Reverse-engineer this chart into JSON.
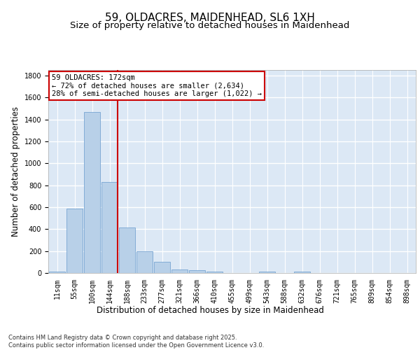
{
  "title1": "59, OLDACRES, MAIDENHEAD, SL6 1XH",
  "title2": "Size of property relative to detached houses in Maidenhead",
  "xlabel": "Distribution of detached houses by size in Maidenhead",
  "ylabel": "Number of detached properties",
  "categories": [
    "11sqm",
    "55sqm",
    "100sqm",
    "144sqm",
    "188sqm",
    "233sqm",
    "277sqm",
    "321sqm",
    "366sqm",
    "410sqm",
    "455sqm",
    "499sqm",
    "543sqm",
    "588sqm",
    "632sqm",
    "676sqm",
    "721sqm",
    "765sqm",
    "809sqm",
    "854sqm",
    "898sqm"
  ],
  "values": [
    15,
    590,
    1470,
    830,
    415,
    200,
    105,
    30,
    25,
    15,
    0,
    0,
    15,
    0,
    15,
    0,
    0,
    0,
    0,
    0,
    0
  ],
  "bar_color": "#b8d0e8",
  "bar_edge_color": "#6699cc",
  "vline_color": "#cc0000",
  "annotation_line1": "59 OLDACRES: 172sqm",
  "annotation_line2": "← 72% of detached houses are smaller (2,634)",
  "annotation_line3": "28% of semi-detached houses are larger (1,022) →",
  "annotation_box_color": "#ffffff",
  "annotation_box_edge": "#cc0000",
  "ylim": [
    0,
    1850
  ],
  "yticks": [
    0,
    200,
    400,
    600,
    800,
    1000,
    1200,
    1400,
    1600,
    1800
  ],
  "background_color": "#dce8f5",
  "grid_color": "#ffffff",
  "footer": "Contains HM Land Registry data © Crown copyright and database right 2025.\nContains public sector information licensed under the Open Government Licence v3.0.",
  "title1_fontsize": 11,
  "title2_fontsize": 9.5,
  "axis_label_fontsize": 8.5,
  "tick_fontsize": 7,
  "annotation_fontsize": 7.5,
  "footer_fontsize": 6
}
